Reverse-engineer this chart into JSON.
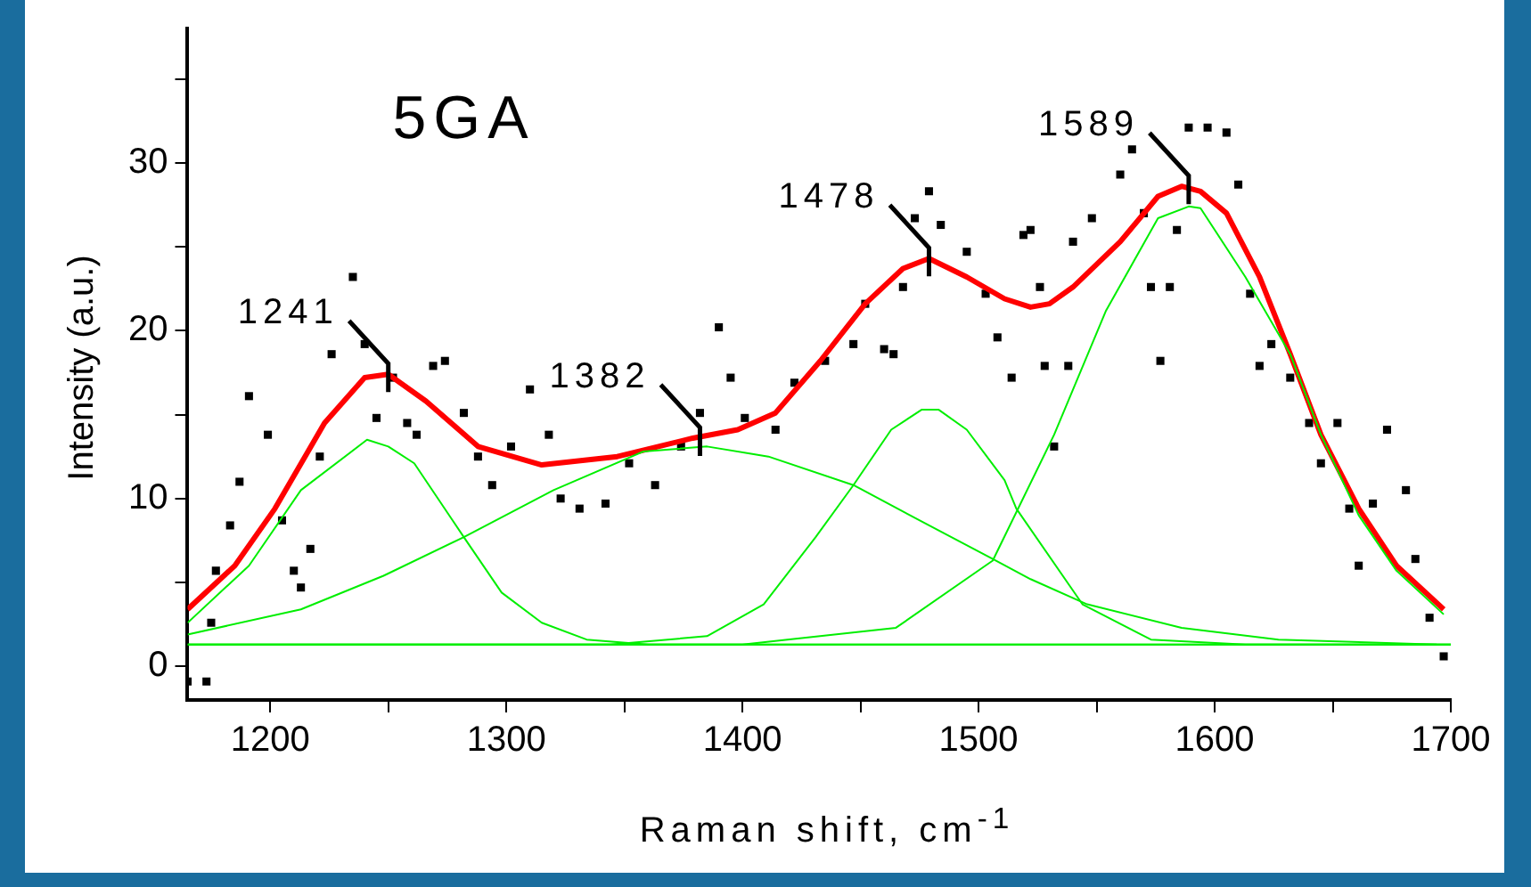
{
  "chart_data": {
    "type": "line",
    "title": "5GA",
    "xlabel": "Raman shift, cm$^{-1}$",
    "ylabel": "Intensity (a.u.)",
    "xlim": [
      1165,
      1700
    ],
    "xticks": [
      1200,
      {
        "value": 1250,
        "label": null
      },
      1300,
      {
        "value": 1350,
        "label": null
      },
      1400,
      {
        "value": 1450,
        "label": null
      },
      1500,
      {
        "value": 1550,
        "label": null
      },
      1600,
      {
        "value": 1650,
        "label": null
      },
      1700
    ],
    "ylim": [
      -2,
      38
    ],
    "yticks": [
      0,
      {
        "value": 5,
        "label": null
      },
      10,
      {
        "value": 15,
        "label": null
      },
      20,
      {
        "value": 25,
        "label": null
      },
      30,
      {
        "value": 35,
        "label": null
      }
    ],
    "legend": false,
    "annotations": [
      {
        "text": "1241",
        "x": 1250,
        "y": 17.4
      },
      {
        "text": "1382",
        "x": 1382,
        "y": 13.6
      },
      {
        "text": "1478",
        "x": 1479,
        "y": 24.3
      },
      {
        "text": "1589",
        "x": 1589,
        "y": 28.6
      }
    ],
    "series": [
      {
        "type": "scatter",
        "marker": "square",
        "color": "#000000",
        "x": [
          1165,
          1173,
          1175,
          1177,
          1183,
          1187,
          1191,
          1199,
          1205,
          1210,
          1213,
          1217,
          1221,
          1226,
          1235,
          1240,
          1245,
          1252,
          1258,
          1262,
          1269,
          1274,
          1282,
          1288,
          1294,
          1302,
          1310,
          1318,
          1323,
          1331,
          1342,
          1352,
          1363,
          1374,
          1382,
          1390,
          1395,
          1401,
          1414,
          1422,
          1435,
          1447,
          1452,
          1460,
          1464,
          1468,
          1473,
          1479,
          1484,
          1495,
          1503,
          1508,
          1514,
          1519,
          1522,
          1526,
          1528,
          1532,
          1538,
          1540,
          1548,
          1560,
          1565,
          1570,
          1573,
          1577,
          1581,
          1584,
          1589,
          1597,
          1605,
          1610,
          1615,
          1619,
          1624,
          1632,
          1640,
          1645,
          1652,
          1657,
          1661,
          1667,
          1673,
          1681,
          1685,
          1691,
          1697
        ],
        "values": [
          -0.9,
          -0.9,
          2.6,
          5.7,
          8.4,
          11,
          16.1,
          13.8,
          8.7,
          5.7,
          4.7,
          7,
          12.5,
          18.6,
          23.2,
          19.2,
          14.8,
          17.2,
          14.5,
          13.8,
          17.9,
          18.2,
          15.1,
          12.5,
          10.8,
          13.1,
          16.5,
          13.8,
          10,
          9.4,
          9.7,
          12.1,
          10.8,
          13.1,
          15.1,
          20.2,
          17.2,
          14.8,
          14.1,
          16.9,
          18.2,
          19.2,
          21.6,
          18.9,
          18.6,
          22.6,
          26.7,
          28.3,
          26.3,
          24.7,
          22.2,
          19.6,
          17.2,
          25.7,
          26,
          22.6,
          17.9,
          13.1,
          17.9,
          25.3,
          26.7,
          29.3,
          30.8,
          27,
          22.6,
          18.2,
          22.6,
          26,
          32.1,
          32.1,
          31.8,
          28.7,
          22.2,
          17.9,
          19.2,
          17.2,
          14.5,
          12.1,
          14.5,
          9.4,
          6,
          9.7,
          14.1,
          10.5,
          6.4,
          2.9,
          0.6
        ]
      },
      {
        "type": "line",
        "color": "#00ee00",
        "x": [
          1165,
          1700
        ],
        "values": [
          1.3,
          1.3
        ]
      },
      {
        "type": "line",
        "color": "#00ee00",
        "x": [
          1165,
          1191,
          1213,
          1241,
          1250,
          1261,
          1282,
          1298,
          1315,
          1334,
          1360,
          1700
        ],
        "values": [
          2.6,
          6,
          10.5,
          13.5,
          13.1,
          12.1,
          7.7,
          4.4,
          2.6,
          1.6,
          1.3,
          1.3
        ]
      },
      {
        "type": "line",
        "color": "#00ee00",
        "x": [
          1165,
          1213,
          1248,
          1282,
          1320,
          1358,
          1385,
          1411,
          1447,
          1479,
          1506,
          1522,
          1546,
          1586,
          1627,
          1694
        ],
        "values": [
          1.9,
          3.4,
          5.4,
          7.7,
          10.5,
          12.8,
          13.1,
          12.5,
          10.8,
          8.4,
          6.4,
          5.2,
          3.7,
          2.3,
          1.6,
          1.3
        ]
      },
      {
        "type": "line",
        "color": "#00ee00",
        "x": [
          1165,
          1344,
          1385,
          1409,
          1431,
          1447,
          1463,
          1476,
          1483,
          1495,
          1511,
          1516,
          1544,
          1573,
          1613,
          1700
        ],
        "values": [
          1.3,
          1.3,
          1.8,
          3.7,
          7.7,
          10.8,
          14.1,
          15.3,
          15.3,
          14.1,
          11.1,
          9.4,
          3.7,
          1.6,
          1.3,
          1.3
        ]
      },
      {
        "type": "line",
        "color": "#00ee00",
        "x": [
          1165,
          1400,
          1465,
          1506,
          1532,
          1554,
          1576,
          1589,
          1594,
          1613,
          1632,
          1645,
          1661,
          1677,
          1697
        ],
        "values": [
          1.3,
          1.3,
          2.3,
          6.3,
          13.8,
          21.2,
          26.7,
          27.4,
          27.3,
          23.2,
          18.6,
          13.8,
          9,
          5.7,
          3.1
        ]
      },
      {
        "type": "line",
        "color": "#ff0000",
        "x": [
          1165,
          1185,
          1202,
          1223,
          1240,
          1250,
          1266,
          1288,
          1315,
          1347,
          1379,
          1398,
          1414,
          1433,
          1452,
          1468,
          1479,
          1495,
          1511,
          1522,
          1530,
          1540,
          1560,
          1576,
          1586,
          1594,
          1605,
          1619,
          1632,
          1645,
          1661,
          1677,
          1697
        ],
        "values": [
          3.4,
          6,
          9.4,
          14.5,
          17.2,
          17.4,
          15.8,
          13.1,
          12,
          12.5,
          13.6,
          14.1,
          15.1,
          18.2,
          21.6,
          23.7,
          24.3,
          23.2,
          21.9,
          21.4,
          21.6,
          22.6,
          25.3,
          28,
          28.6,
          28.3,
          27,
          23.2,
          18.6,
          13.8,
          9.4,
          6,
          3.4
        ]
      }
    ]
  }
}
